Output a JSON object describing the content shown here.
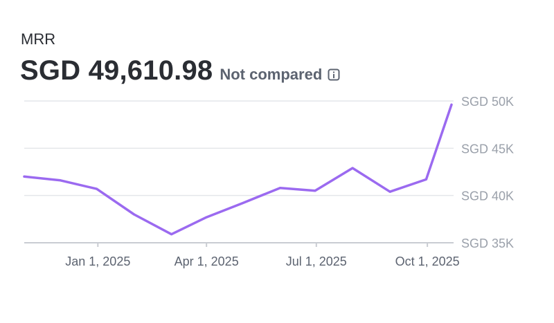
{
  "header": {
    "metric_label": "MRR",
    "value": "SGD 49,610.98",
    "comparison": "Not compared",
    "info_icon": "info-icon"
  },
  "colors": {
    "line": "#9b6af0",
    "grid": "#e4e6ea",
    "axis": "#c9ccd2"
  },
  "chart_data": {
    "type": "line",
    "title": "MRR",
    "xlabel": "",
    "ylabel": "",
    "x_tick_labels": [
      "Jan 1, 2025",
      "Apr 1, 2025",
      "Jul 1, 2025",
      "Oct 1, 2025"
    ],
    "x_tick_dates": [
      "2025-01-01",
      "2025-04-01",
      "2025-07-01",
      "2025-10-01"
    ],
    "y_tick_labels": [
      "SGD 50K",
      "SGD 45K",
      "SGD 40K",
      "SGD 35K"
    ],
    "y_tick_values": [
      50000,
      45000,
      40000,
      35000
    ],
    "ylim": [
      35000,
      50000
    ],
    "xlim": [
      "2024-11-01",
      "2025-10-21"
    ],
    "grid": true,
    "legend": "none",
    "series": [
      {
        "x": [
          "2024-11-01",
          "2024-12-01",
          "2024-12-31",
          "2025-01-31",
          "2025-03-03",
          "2025-04-01",
          "2025-05-01",
          "2025-06-01",
          "2025-06-30",
          "2025-07-31",
          "2025-08-31",
          "2025-09-30",
          "2025-10-21"
        ],
        "values": [
          42000,
          41600,
          40700,
          38000,
          35900,
          37700,
          39200,
          40800,
          40500,
          42900,
          40400,
          41700,
          49611
        ]
      }
    ]
  }
}
